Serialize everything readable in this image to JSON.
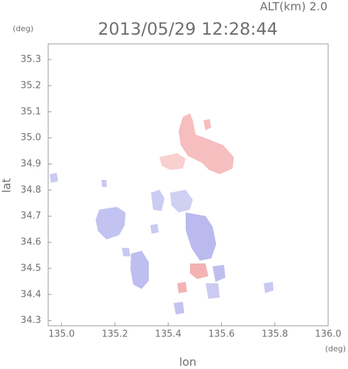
{
  "chart_data": {
    "type": "map",
    "title": "2013/05/29 12:28:44",
    "annotation": "ALT(km) 2.0",
    "xlabel": "lon",
    "ylabel": "lat",
    "xunit": "(deg)",
    "yunit": "(deg)",
    "xlim": [
      134.95,
      136.0
    ],
    "ylim": [
      34.28,
      35.36
    ],
    "xticks": [
      {
        "value": 135.0,
        "label": "135.0"
      },
      135.2,
      135.4,
      135.6,
      135.8,
      {
        "value": 136.0,
        "label": "136.0"
      }
    ],
    "yticks": [
      34.3,
      34.4,
      34.5,
      34.6,
      34.7,
      34.8,
      34.9,
      {
        "value": 35.0,
        "label": "35.0"
      },
      35.1,
      35.2,
      35.3
    ]
  }
}
